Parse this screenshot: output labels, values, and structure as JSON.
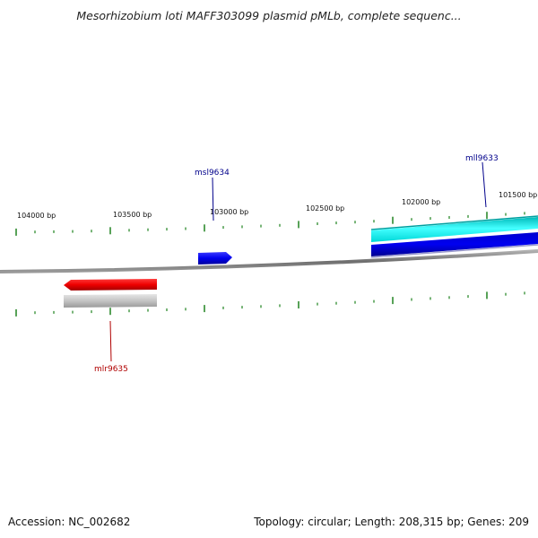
{
  "title": "Mesorhizobium loti MAFF303099 plasmid pMLb, complete sequenc...",
  "footer": {
    "accession_label": "Accession:",
    "accession": "NC_002682",
    "topology_label": "Topology:",
    "topology": "circular",
    "length_label": "Length:",
    "length": "208,315 bp",
    "genes_label": "Genes:",
    "genes": "209"
  },
  "map": {
    "backbone_color": "#808080",
    "tick_color": "#2e8b2e",
    "position_labels": [
      {
        "name": "pos-104000",
        "text": "104000 bp"
      },
      {
        "name": "pos-103500",
        "text": "103500 bp"
      },
      {
        "name": "pos-103000",
        "text": "103000 bp"
      },
      {
        "name": "pos-102500",
        "text": "102500 bp"
      },
      {
        "name": "pos-102000",
        "text": "102000 bp"
      },
      {
        "name": "pos-101500",
        "text": "101500 bp"
      }
    ],
    "genes": [
      {
        "name": "msl9634",
        "label": "msl9634",
        "strand": "forward",
        "color": "#0000ee",
        "label_color": "#00008b"
      },
      {
        "name": "mll9633",
        "label": "mll9633",
        "strand": "forward",
        "color": "#00e5e5",
        "label_color": "#00008b"
      },
      {
        "name": "mlr9635",
        "label": "mlr9635",
        "strand": "reverse",
        "color": "#ee0000",
        "label_color": "#b00000"
      }
    ]
  }
}
